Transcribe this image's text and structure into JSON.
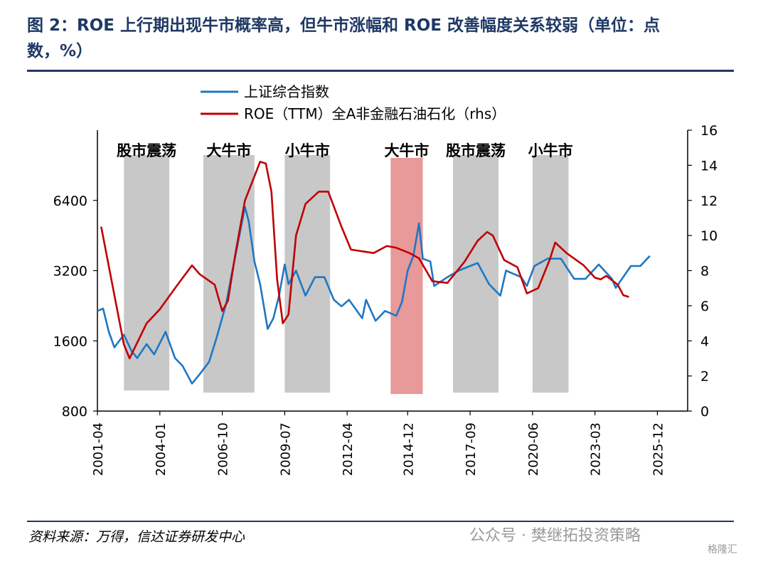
{
  "title_line1": "图 2：ROE 上行期出现牛市概率高，但牛市涨幅和 ROE 改善幅度关系较弱（单位：点",
  "title_line2": "数，%）",
  "source": "资料来源：万得，信达证券研发中心",
  "watermark": "公众号 · 樊继拓投资策略",
  "watermark2": "格隆汇",
  "colors": {
    "index": "#1f77c4",
    "roe": "#c00000",
    "period": "#c8c8c8",
    "highlight": "#e8999a",
    "axis": "#000000"
  },
  "chart_data": {
    "type": "line",
    "legend": [
      {
        "name": "上证综合指数",
        "color": "#1f77c4"
      },
      {
        "name": "ROE（TTM）全A非金融石油石化（rhs）",
        "color": "#c00000"
      }
    ],
    "legend_position": "top-left",
    "x_ticks": [
      "2001-04",
      "2004-01",
      "2006-10",
      "2009-07",
      "2012-04",
      "2014-12",
      "2017-09",
      "2020-06",
      "2023-03",
      "2025-12"
    ],
    "x_range": [
      "2001-04",
      "2027-04"
    ],
    "y_left": {
      "scale": "log",
      "range": [
        800,
        12800
      ],
      "ticks": [
        800,
        1600,
        3200,
        6400
      ]
    },
    "y_right": {
      "range": [
        0,
        16
      ],
      "ticks": [
        0,
        2,
        4,
        6,
        8,
        10,
        12,
        14,
        16
      ]
    },
    "periods": [
      {
        "label": "股市震荡",
        "start": "2002-06",
        "end": "2004-06",
        "highlight": false
      },
      {
        "label": "大牛市",
        "start": "2005-12",
        "end": "2008-03",
        "highlight": false
      },
      {
        "label": "小牛市",
        "start": "2009-07",
        "end": "2011-07",
        "highlight": false
      },
      {
        "label": "大牛市",
        "start": "2014-03",
        "end": "2015-08",
        "highlight": true
      },
      {
        "label": "股市震荡",
        "start": "2016-12",
        "end": "2018-12",
        "highlight": false
      },
      {
        "label": "小牛市",
        "start": "2020-06",
        "end": "2022-01",
        "highlight": false
      }
    ],
    "series": [
      {
        "name": "上证综合指数",
        "axis": "left",
        "points": [
          [
            "2001-04",
            2150
          ],
          [
            "2001-07",
            2200
          ],
          [
            "2001-10",
            1750
          ],
          [
            "2002-01",
            1500
          ],
          [
            "2002-06",
            1700
          ],
          [
            "2002-10",
            1450
          ],
          [
            "2003-01",
            1350
          ],
          [
            "2003-06",
            1550
          ],
          [
            "2003-10",
            1400
          ],
          [
            "2004-04",
            1750
          ],
          [
            "2004-09",
            1350
          ],
          [
            "2005-01",
            1250
          ],
          [
            "2005-06",
            1050
          ],
          [
            "2005-10",
            1150
          ],
          [
            "2006-03",
            1300
          ],
          [
            "2006-07",
            1650
          ],
          [
            "2006-12",
            2300
          ],
          [
            "2007-03",
            3100
          ],
          [
            "2007-06",
            4100
          ],
          [
            "2007-10",
            6000
          ],
          [
            "2007-12",
            5200
          ],
          [
            "2008-03",
            3500
          ],
          [
            "2008-06",
            2800
          ],
          [
            "2008-10",
            1800
          ],
          [
            "2009-01",
            2000
          ],
          [
            "2009-04",
            2500
          ],
          [
            "2009-07",
            3400
          ],
          [
            "2009-09",
            2800
          ],
          [
            "2010-01",
            3200
          ],
          [
            "2010-06",
            2500
          ],
          [
            "2010-11",
            3000
          ],
          [
            "2011-04",
            3000
          ],
          [
            "2011-09",
            2400
          ],
          [
            "2012-01",
            2250
          ],
          [
            "2012-05",
            2400
          ],
          [
            "2012-12",
            2000
          ],
          [
            "2013-02",
            2400
          ],
          [
            "2013-07",
            1950
          ],
          [
            "2013-12",
            2150
          ],
          [
            "2014-06",
            2050
          ],
          [
            "2014-09",
            2350
          ],
          [
            "2014-12",
            3200
          ],
          [
            "2015-03",
            3700
          ],
          [
            "2015-06",
            5100
          ],
          [
            "2015-08",
            3600
          ],
          [
            "2015-12",
            3500
          ],
          [
            "2016-02",
            2750
          ],
          [
            "2016-09",
            3000
          ],
          [
            "2017-03",
            3200
          ],
          [
            "2017-09",
            3350
          ],
          [
            "2018-01",
            3450
          ],
          [
            "2018-07",
            2800
          ],
          [
            "2019-01",
            2500
          ],
          [
            "2019-04",
            3200
          ],
          [
            "2019-12",
            3000
          ],
          [
            "2020-03",
            2750
          ],
          [
            "2020-07",
            3350
          ],
          [
            "2021-02",
            3600
          ],
          [
            "2021-09",
            3600
          ],
          [
            "2022-04",
            2950
          ],
          [
            "2022-10",
            2950
          ],
          [
            "2023-05",
            3400
          ],
          [
            "2023-12",
            2950
          ],
          [
            "2024-02",
            2700
          ],
          [
            "2024-10",
            3350
          ],
          [
            "2025-03",
            3350
          ],
          [
            "2025-08",
            3700
          ]
        ]
      },
      {
        "name": "ROE（TTM）全A非金融石油石化（rhs）",
        "axis": "right",
        "points": [
          [
            "2001-06",
            10.5
          ],
          [
            "2002-06",
            3.8
          ],
          [
            "2002-09",
            3.0
          ],
          [
            "2003-06",
            5.0
          ],
          [
            "2004-01",
            5.8
          ],
          [
            "2004-09",
            7.0
          ],
          [
            "2005-06",
            8.3
          ],
          [
            "2005-10",
            7.8
          ],
          [
            "2006-06",
            7.2
          ],
          [
            "2006-10",
            5.7
          ],
          [
            "2007-01",
            6.3
          ],
          [
            "2007-05",
            9.0
          ],
          [
            "2007-10",
            12.0
          ],
          [
            "2008-06",
            14.2
          ],
          [
            "2008-09",
            14.1
          ],
          [
            "2008-12",
            12.5
          ],
          [
            "2009-03",
            7.5
          ],
          [
            "2009-06",
            5.0
          ],
          [
            "2009-09",
            5.5
          ],
          [
            "2010-01",
            10.0
          ],
          [
            "2010-06",
            11.8
          ],
          [
            "2011-01",
            12.5
          ],
          [
            "2011-06",
            12.5
          ],
          [
            "2012-01",
            10.5
          ],
          [
            "2012-06",
            9.2
          ],
          [
            "2013-06",
            9.0
          ],
          [
            "2014-01",
            9.4
          ],
          [
            "2014-06",
            9.3
          ],
          [
            "2015-01",
            9.0
          ],
          [
            "2015-06",
            8.7
          ],
          [
            "2016-01",
            7.4
          ],
          [
            "2016-09",
            7.3
          ],
          [
            "2017-06",
            8.5
          ],
          [
            "2018-01",
            9.7
          ],
          [
            "2018-06",
            10.2
          ],
          [
            "2018-09",
            10.0
          ],
          [
            "2019-03",
            8.6
          ],
          [
            "2019-10",
            8.2
          ],
          [
            "2020-03",
            6.7
          ],
          [
            "2020-09",
            7.0
          ],
          [
            "2021-03",
            8.6
          ],
          [
            "2021-06",
            9.6
          ],
          [
            "2021-12",
            9.0
          ],
          [
            "2022-09",
            8.3
          ],
          [
            "2023-03",
            7.6
          ],
          [
            "2023-06",
            7.5
          ],
          [
            "2023-09",
            7.7
          ],
          [
            "2024-03",
            7.2
          ],
          [
            "2024-06",
            6.6
          ],
          [
            "2024-09",
            6.5
          ]
        ]
      }
    ]
  }
}
